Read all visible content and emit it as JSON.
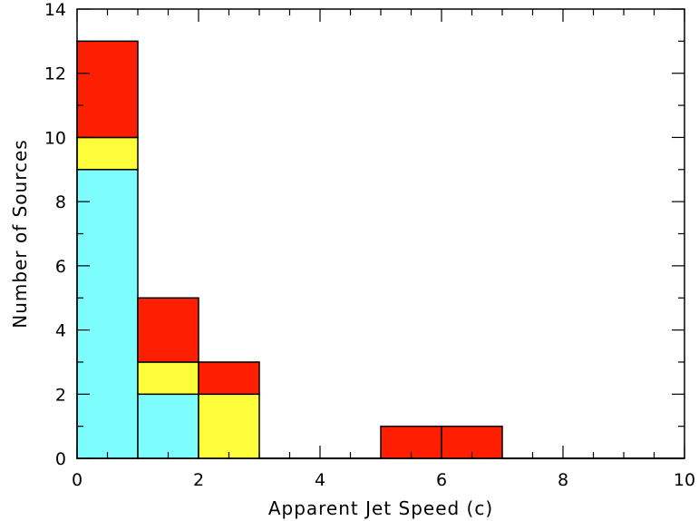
{
  "chart_data": {
    "type": "bar",
    "stacked": true,
    "title": "",
    "xlabel": "Apparent Jet Speed (c)",
    "ylabel": "Number of Sources",
    "xlim": [
      0,
      10
    ],
    "ylim": [
      0,
      14
    ],
    "bin_edges": [
      0,
      1,
      2,
      3,
      4,
      5,
      6,
      7,
      8,
      9,
      10
    ],
    "series": [
      {
        "color": "#7dfdfd",
        "values": [
          9,
          2,
          0,
          0,
          0,
          0,
          0,
          0,
          0,
          0
        ]
      },
      {
        "color": "#fdfd3a",
        "values": [
          1,
          1,
          2,
          0,
          0,
          0,
          0,
          0,
          0,
          0
        ]
      },
      {
        "color": "#fd1f00",
        "values": [
          3,
          2,
          1,
          0,
          0,
          1,
          1,
          0,
          0,
          0
        ]
      }
    ],
    "x_ticks": [
      "0",
      "2",
      "4",
      "6",
      "8",
      "10"
    ],
    "y_ticks": [
      "0",
      "2",
      "4",
      "6",
      "8",
      "10",
      "12",
      "14"
    ],
    "grid": false,
    "legend": "none"
  }
}
